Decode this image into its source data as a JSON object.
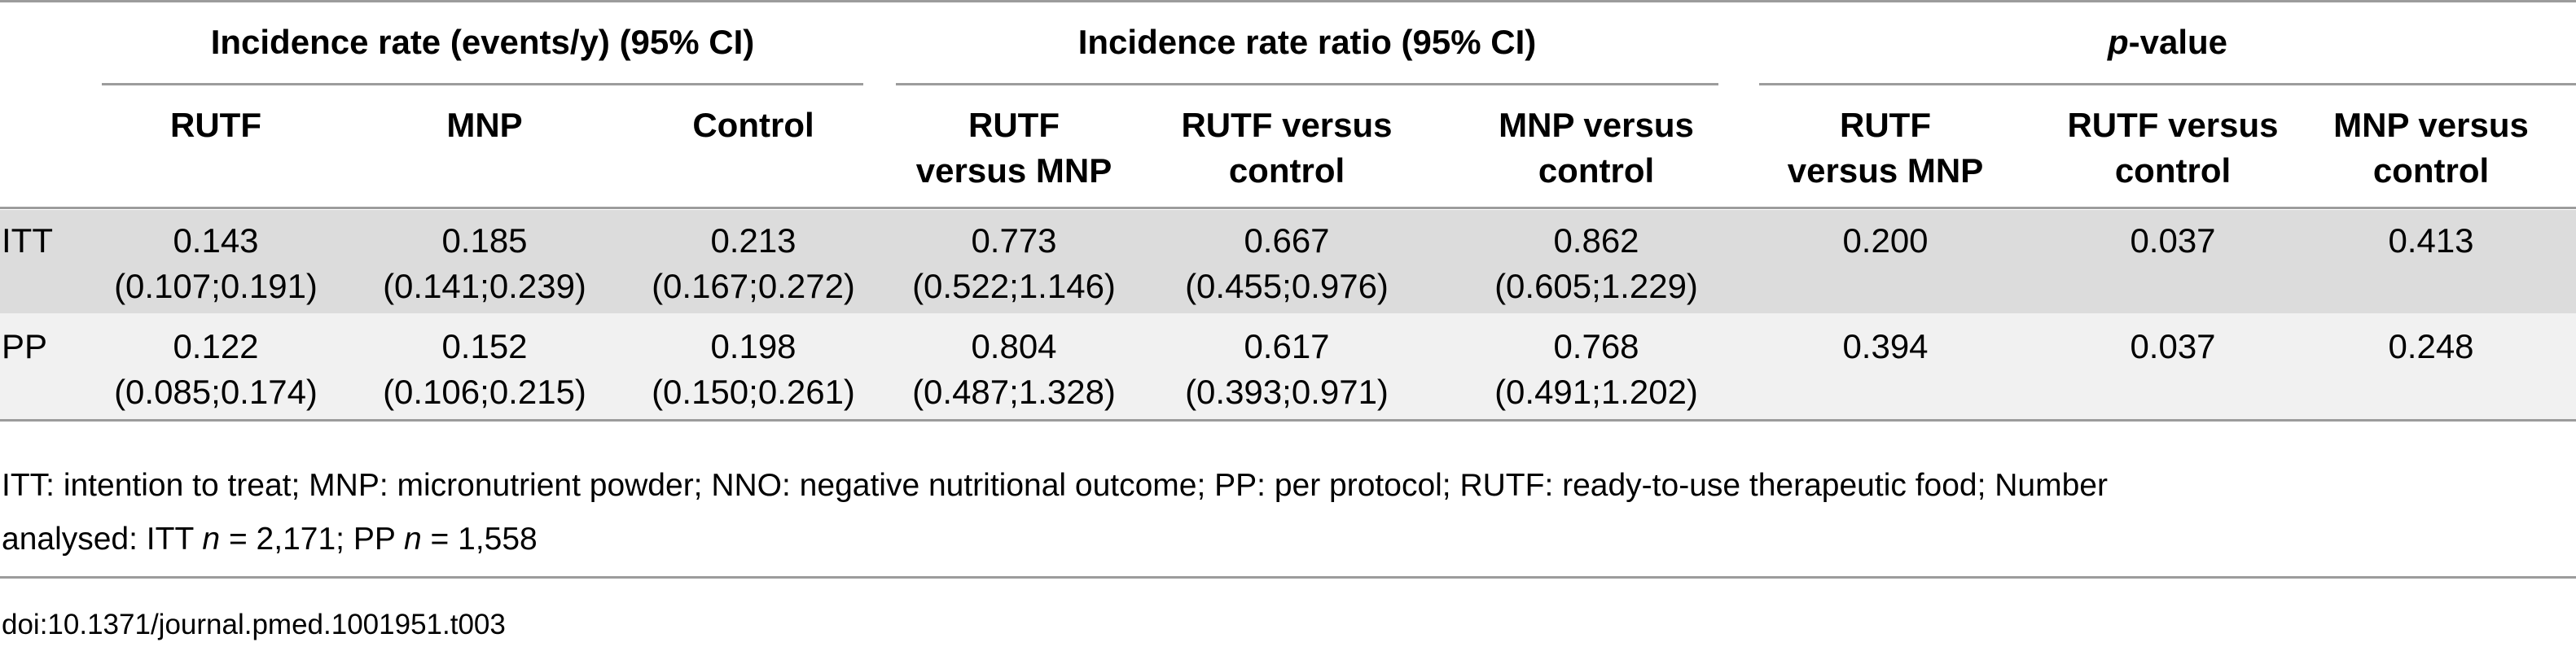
{
  "header": {
    "group_incidence_rate": "Incidence rate (events/y) (95% CI)",
    "group_irr": "Incidence rate ratio (95% CI)",
    "group_p_italic": "p",
    "group_p_rest": "-value",
    "columns": [
      {
        "l1": "RUTF",
        "l2": ""
      },
      {
        "l1": "MNP",
        "l2": ""
      },
      {
        "l1": "Control",
        "l2": ""
      },
      {
        "l1": "RUTF",
        "l2": "versus MNP"
      },
      {
        "l1": "RUTF versus",
        "l2": "control"
      },
      {
        "l1": "MNP versus",
        "l2": "control"
      },
      {
        "l1": "RUTF",
        "l2": "versus MNP"
      },
      {
        "l1": "RUTF versus",
        "l2": "control"
      },
      {
        "l1": "MNP versus",
        "l2": "control"
      }
    ]
  },
  "rows": [
    {
      "label": "ITT",
      "cells": [
        {
          "v": "0.143",
          "ci": "(0.107;0.191)"
        },
        {
          "v": "0.185",
          "ci": "(0.141;0.239)"
        },
        {
          "v": "0.213",
          "ci": "(0.167;0.272)"
        },
        {
          "v": "0.773",
          "ci": "(0.522;1.146)"
        },
        {
          "v": "0.667",
          "ci": "(0.455;0.976)"
        },
        {
          "v": "0.862",
          "ci": "(0.605;1.229)"
        },
        {
          "v": "0.200",
          "ci": ""
        },
        {
          "v": "0.037",
          "ci": ""
        },
        {
          "v": "0.413",
          "ci": ""
        }
      ]
    },
    {
      "label": "PP",
      "cells": [
        {
          "v": "0.122",
          "ci": "(0.085;0.174)"
        },
        {
          "v": "0.152",
          "ci": "(0.106;0.215)"
        },
        {
          "v": "0.198",
          "ci": "(0.150;0.261)"
        },
        {
          "v": "0.804",
          "ci": "(0.487;1.328)"
        },
        {
          "v": "0.617",
          "ci": "(0.393;0.971)"
        },
        {
          "v": "0.768",
          "ci": "(0.491;1.202)"
        },
        {
          "v": "0.394",
          "ci": ""
        },
        {
          "v": "0.037",
          "ci": ""
        },
        {
          "v": "0.248",
          "ci": ""
        }
      ]
    }
  ],
  "footnote": {
    "line1": "ITT: intention to treat; MNP: micronutrient powder; NNO: negative nutritional outcome; PP: per protocol; RUTF: ready-to-use therapeutic food; Number",
    "line2_a": "analysed: ITT ",
    "n1": "n",
    "line2_b": " = 2,171; PP ",
    "n2": "n",
    "line2_c": " = 1,558"
  },
  "doi": "doi:10.1371/journal.pmed.1001951.t003"
}
